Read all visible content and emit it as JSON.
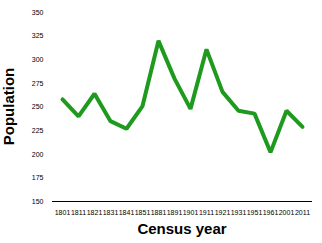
{
  "chart_data": {
    "type": "line",
    "x_label": "Census year",
    "y_label": "Population",
    "categories": [
      "1801",
      "1811",
      "1821",
      "1831",
      "1841",
      "1851",
      "1881",
      "1891",
      "1901",
      "1911",
      "1921",
      "1931",
      "1951",
      "1961",
      "2001",
      "2011"
    ],
    "values": [
      258,
      240,
      264,
      235,
      227,
      251,
      320,
      280,
      248,
      311,
      266,
      246,
      243,
      202,
      246,
      229
    ],
    "color": "#1e9a1e",
    "ylim": [
      150,
      350
    ],
    "yticks": [
      150,
      175,
      200,
      225,
      250,
      275,
      300,
      325,
      350
    ],
    "grid": false
  }
}
